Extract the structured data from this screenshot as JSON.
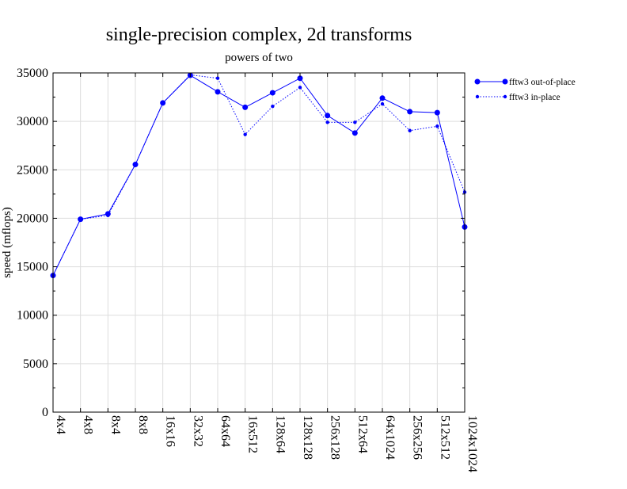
{
  "chart_data": {
    "type": "line",
    "title": "single-precision complex, 2d transforms",
    "subtitle": "powers of two",
    "xlabel": "",
    "ylabel": "speed (mflops)",
    "categories": [
      "4x4",
      "4x8",
      "8x4",
      "8x8",
      "16x16",
      "32x32",
      "64x64",
      "16x512",
      "128x64",
      "128x128",
      "256x128",
      "512x64",
      "64x1024",
      "256x256",
      "512x512",
      "1024x1024"
    ],
    "ylim": [
      0,
      35000
    ],
    "yticks": [
      0,
      5000,
      10000,
      15000,
      20000,
      25000,
      30000,
      35000
    ],
    "grid": true,
    "legend_position": "right",
    "series": [
      {
        "name": "fftw3 out-of-place",
        "style": "solid",
        "color": "#0000ff",
        "values": [
          14100,
          19900,
          20450,
          25550,
          31900,
          34750,
          33050,
          31450,
          32950,
          34450,
          30600,
          28800,
          32400,
          31000,
          30900,
          19100
        ]
      },
      {
        "name": "fftw3 in-place",
        "style": "dotted",
        "color": "#0000ff",
        "values": [
          14100,
          19900,
          20300,
          25550,
          31900,
          34800,
          34450,
          28650,
          31550,
          33500,
          29900,
          29900,
          31800,
          29050,
          29500,
          22700
        ]
      }
    ]
  }
}
